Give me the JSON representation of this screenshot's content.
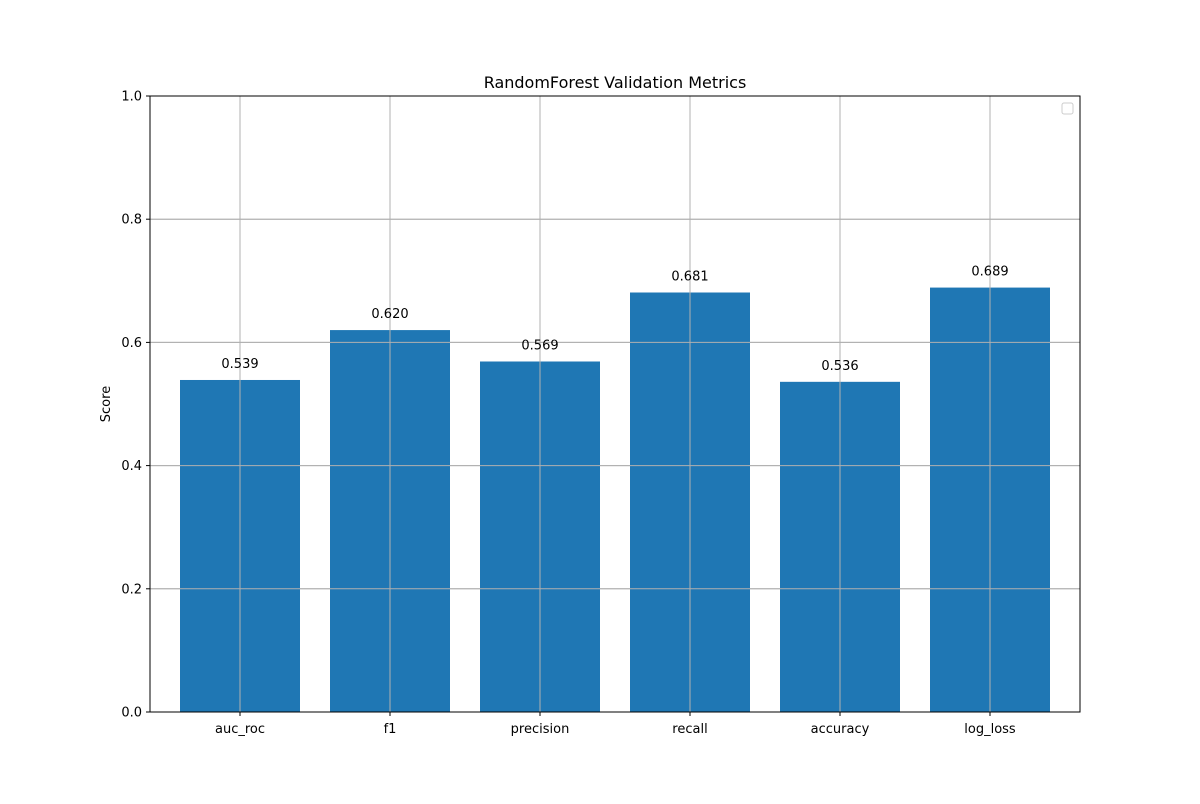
{
  "chart_data": {
    "type": "bar",
    "title": "RandomForest Validation Metrics",
    "xlabel": "",
    "ylabel": "Score",
    "categories": [
      "auc_roc",
      "f1",
      "precision",
      "recall",
      "accuracy",
      "log_loss"
    ],
    "values": [
      0.539,
      0.62,
      0.569,
      0.681,
      0.536,
      0.689
    ],
    "value_labels": [
      "0.539",
      "0.620",
      "0.569",
      "0.681",
      "0.536",
      "0.689"
    ],
    "ylim": [
      0,
      1
    ],
    "yticks": [
      0.0,
      0.2,
      0.4,
      0.6,
      0.8,
      1.0
    ],
    "ytick_labels": [
      "0.0",
      "0.2",
      "0.4",
      "0.6",
      "0.8",
      "1.0"
    ],
    "grid": true,
    "legend": {
      "placement": "top-right",
      "entries": []
    },
    "colors": {
      "bar": "#1f77b4",
      "grid": "#b0b0b0",
      "axis": "#000000"
    }
  }
}
